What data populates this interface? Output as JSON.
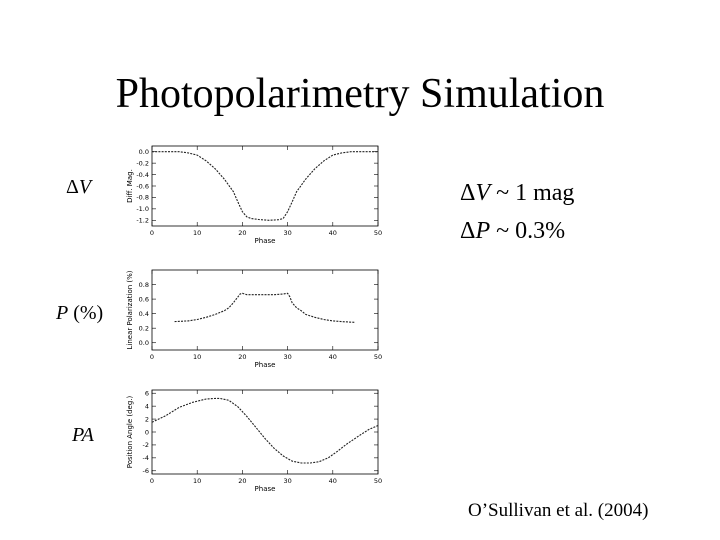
{
  "title": "Photopolarimetry Simulation",
  "left_labels": {
    "dv": {
      "symbol": "Δ",
      "var": "V"
    },
    "p": {
      "var": "P",
      "unit": " (%)"
    },
    "pa": {
      "var": "PA"
    }
  },
  "notes": {
    "line1": {
      "symbol": "Δ",
      "var": "V",
      "rest": " ~ 1 mag"
    },
    "line2": {
      "symbol": "Δ",
      "var": "P",
      "rest": " ~ 0.3%"
    }
  },
  "citation": "O’Sullivan et al. (2004)",
  "colors": {
    "background": "#ffffff",
    "ink": "#000000",
    "curve": "#222222"
  },
  "chart_data": [
    {
      "type": "line",
      "xlabel": "Phase",
      "ylabel": "Diff. Mag.",
      "xlim": [
        0,
        50
      ],
      "ylim": [
        -1.3,
        0.1
      ],
      "xticks": [
        0,
        10,
        20,
        30,
        40,
        50
      ],
      "yticks": [
        0.0,
        -0.2,
        -0.4,
        -0.6,
        -0.8,
        -1.0,
        -1.2
      ],
      "ytick_labels": [
        "0.0",
        "-0.2",
        "-0.4",
        "-0.6",
        "-0.8",
        "-1.0",
        "-1.2"
      ],
      "series": [
        {
          "x": [
            0,
            4,
            6,
            8,
            10,
            12,
            14,
            16,
            18,
            19,
            20,
            21,
            22,
            24,
            26,
            28,
            29,
            30,
            31,
            32,
            34,
            36,
            38,
            40,
            42,
            44,
            46,
            50
          ],
          "y": [
            0.0,
            0.0,
            0.0,
            -0.02,
            -0.06,
            -0.16,
            -0.3,
            -0.48,
            -0.7,
            -0.88,
            -1.05,
            -1.14,
            -1.17,
            -1.19,
            -1.2,
            -1.19,
            -1.17,
            -1.05,
            -0.88,
            -0.7,
            -0.48,
            -0.3,
            -0.16,
            -0.06,
            -0.02,
            0.0,
            0.0,
            0.0
          ]
        }
      ]
    },
    {
      "type": "line",
      "xlabel": "Phase",
      "ylabel": "Linear Polarization (%)",
      "xlim": [
        0,
        50
      ],
      "ylim": [
        -0.1,
        1.0
      ],
      "xticks": [
        0,
        10,
        20,
        30,
        40,
        50
      ],
      "yticks": [
        0.0,
        0.2,
        0.4,
        0.6,
        0.8
      ],
      "ytick_labels": [
        "0.0",
        "0.2",
        "0.4",
        "0.6",
        "0.8"
      ],
      "series": [
        {
          "x": [
            5,
            8,
            10,
            12,
            14,
            16,
            17,
            18,
            19,
            19.5,
            20,
            21,
            23,
            25,
            27,
            29,
            30,
            30.5,
            31,
            32,
            33,
            34,
            36,
            38,
            40,
            42,
            45
          ],
          "y": [
            0.29,
            0.3,
            0.32,
            0.35,
            0.39,
            0.44,
            0.48,
            0.55,
            0.63,
            0.67,
            0.68,
            0.66,
            0.66,
            0.66,
            0.66,
            0.67,
            0.68,
            0.63,
            0.55,
            0.48,
            0.44,
            0.39,
            0.35,
            0.32,
            0.3,
            0.29,
            0.28
          ]
        }
      ]
    },
    {
      "type": "line",
      "xlabel": "Phase",
      "ylabel": "Position Angle (deg.)",
      "xlim": [
        0,
        50
      ],
      "ylim": [
        -6.5,
        6.5
      ],
      "xticks": [
        0,
        10,
        20,
        30,
        40,
        50
      ],
      "yticks": [
        6,
        4,
        2,
        0,
        -2,
        -4,
        -6
      ],
      "ytick_labels": [
        "6",
        "4",
        "2",
        "0",
        "-2",
        "-4",
        "-6"
      ],
      "series": [
        {
          "x": [
            0,
            3,
            6,
            9,
            12,
            14,
            15,
            17,
            19,
            21,
            23,
            25,
            27,
            29,
            31,
            33,
            35,
            37,
            39,
            41,
            43,
            46,
            48,
            50
          ],
          "y": [
            1.5,
            2.5,
            3.8,
            4.6,
            5.1,
            5.2,
            5.2,
            4.9,
            3.9,
            2.4,
            0.7,
            -1.0,
            -2.5,
            -3.7,
            -4.5,
            -4.8,
            -4.8,
            -4.6,
            -4.0,
            -3.0,
            -1.9,
            -0.5,
            0.4,
            1.0
          ]
        }
      ]
    }
  ]
}
